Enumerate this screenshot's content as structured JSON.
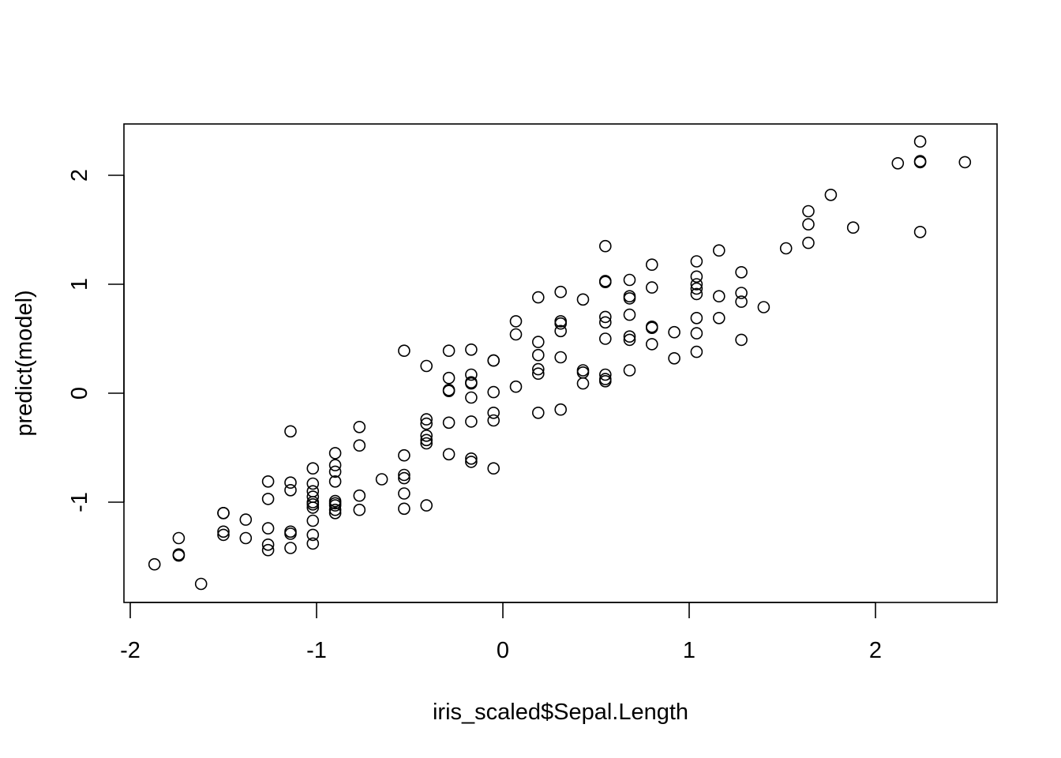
{
  "chart_data": {
    "type": "scatter",
    "title": "",
    "xlabel": "iris_scaled$Sepal.Length",
    "ylabel": "predict(model)",
    "xlim": [
      -2.0,
      2.65
    ],
    "ylim": [
      -1.92,
      2.46
    ],
    "xticks": [
      -2,
      -1,
      0,
      1,
      2
    ],
    "yticks": [
      -1,
      0,
      1,
      2
    ],
    "xtick_labels": [
      "-2",
      "-1",
      "0",
      "1",
      "2"
    ],
    "ytick_labels": [
      "-1",
      "0",
      "1",
      "2"
    ],
    "grid": false,
    "marker": "open-circle",
    "colors": {
      "points": "#000000",
      "axes": "#000000",
      "background": "#ffffff"
    },
    "points": [
      [
        2.24,
        2.31
      ],
      [
        2.24,
        2.13
      ],
      [
        2.24,
        2.12
      ],
      [
        2.12,
        2.11
      ],
      [
        2.48,
        2.12
      ],
      [
        2.24,
        1.48
      ],
      [
        1.76,
        1.82
      ],
      [
        1.64,
        1.67
      ],
      [
        1.64,
        1.55
      ],
      [
        1.64,
        1.38
      ],
      [
        1.88,
        1.52
      ],
      [
        1.52,
        1.33
      ],
      [
        1.4,
        0.79
      ],
      [
        1.28,
        1.11
      ],
      [
        1.28,
        0.92
      ],
      [
        1.28,
        0.84
      ],
      [
        1.28,
        0.49
      ],
      [
        1.16,
        1.31
      ],
      [
        1.16,
        0.89
      ],
      [
        1.16,
        0.69
      ],
      [
        1.04,
        1.21
      ],
      [
        1.04,
        1.07
      ],
      [
        1.04,
        1.0
      ],
      [
        1.04,
        0.96
      ],
      [
        1.04,
        0.91
      ],
      [
        1.04,
        0.69
      ],
      [
        1.04,
        0.55
      ],
      [
        1.04,
        0.38
      ],
      [
        0.92,
        0.56
      ],
      [
        0.92,
        0.32
      ],
      [
        0.8,
        1.18
      ],
      [
        0.8,
        0.97
      ],
      [
        0.8,
        0.61
      ],
      [
        0.8,
        0.6
      ],
      [
        0.8,
        0.45
      ],
      [
        0.68,
        1.04
      ],
      [
        0.68,
        0.89
      ],
      [
        0.68,
        0.87
      ],
      [
        0.68,
        0.72
      ],
      [
        0.68,
        0.52
      ],
      [
        0.68,
        0.49
      ],
      [
        0.68,
        0.21
      ],
      [
        0.55,
        1.35
      ],
      [
        0.55,
        1.02
      ],
      [
        0.55,
        1.03
      ],
      [
        0.55,
        0.7
      ],
      [
        0.55,
        0.65
      ],
      [
        0.55,
        0.5
      ],
      [
        0.55,
        0.17
      ],
      [
        0.55,
        0.13
      ],
      [
        0.55,
        0.11
      ],
      [
        0.43,
        0.86
      ],
      [
        0.43,
        0.21
      ],
      [
        0.43,
        0.19
      ],
      [
        0.43,
        0.09
      ],
      [
        0.31,
        0.93
      ],
      [
        0.31,
        0.66
      ],
      [
        0.31,
        0.64
      ],
      [
        0.31,
        0.57
      ],
      [
        0.31,
        0.33
      ],
      [
        0.31,
        -0.15
      ],
      [
        0.19,
        0.88
      ],
      [
        0.19,
        0.47
      ],
      [
        0.19,
        0.35
      ],
      [
        0.19,
        0.22
      ],
      [
        0.19,
        0.18
      ],
      [
        0.19,
        -0.18
      ],
      [
        0.07,
        0.66
      ],
      [
        0.07,
        0.54
      ],
      [
        0.07,
        0.06
      ],
      [
        -0.05,
        0.3
      ],
      [
        -0.05,
        0.3
      ],
      [
        -0.05,
        0.01
      ],
      [
        -0.05,
        -0.18
      ],
      [
        -0.05,
        -0.25
      ],
      [
        -0.05,
        -0.69
      ],
      [
        -0.17,
        0.4
      ],
      [
        -0.17,
        0.17
      ],
      [
        -0.17,
        0.1
      ],
      [
        -0.17,
        0.09
      ],
      [
        -0.17,
        -0.04
      ],
      [
        -0.17,
        -0.26
      ],
      [
        -0.17,
        -0.6
      ],
      [
        -0.17,
        -0.63
      ],
      [
        -0.29,
        0.39
      ],
      [
        -0.29,
        0.14
      ],
      [
        -0.29,
        0.03
      ],
      [
        -0.29,
        0.02
      ],
      [
        -0.29,
        -0.27
      ],
      [
        -0.29,
        -0.56
      ],
      [
        -0.41,
        0.25
      ],
      [
        -0.41,
        -0.24
      ],
      [
        -0.41,
        -0.28
      ],
      [
        -0.41,
        -0.39
      ],
      [
        -0.41,
        -0.43
      ],
      [
        -0.41,
        -0.46
      ],
      [
        -0.41,
        -1.03
      ],
      [
        -0.53,
        0.39
      ],
      [
        -0.53,
        -0.57
      ],
      [
        -0.53,
        -0.75
      ],
      [
        -0.53,
        -0.78
      ],
      [
        -0.53,
        -0.92
      ],
      [
        -0.53,
        -1.06
      ],
      [
        -0.65,
        -0.79
      ],
      [
        -0.77,
        -0.31
      ],
      [
        -0.77,
        -0.48
      ],
      [
        -0.77,
        -0.94
      ],
      [
        -0.77,
        -1.07
      ],
      [
        -0.9,
        -0.55
      ],
      [
        -0.9,
        -0.66
      ],
      [
        -0.9,
        -0.72
      ],
      [
        -0.9,
        -0.81
      ],
      [
        -0.9,
        -0.99
      ],
      [
        -0.9,
        -1.01
      ],
      [
        -0.9,
        -1.03
      ],
      [
        -0.9,
        -1.07
      ],
      [
        -0.9,
        -1.1
      ],
      [
        -1.02,
        -0.69
      ],
      [
        -1.02,
        -0.83
      ],
      [
        -1.02,
        -0.9
      ],
      [
        -1.02,
        -0.95
      ],
      [
        -1.02,
        -1.0
      ],
      [
        -1.02,
        -1.02
      ],
      [
        -1.02,
        -1.05
      ],
      [
        -1.02,
        -1.17
      ],
      [
        -1.02,
        -1.3
      ],
      [
        -1.02,
        -1.38
      ],
      [
        -1.14,
        -0.35
      ],
      [
        -1.14,
        -0.82
      ],
      [
        -1.14,
        -0.89
      ],
      [
        -1.14,
        -1.27
      ],
      [
        -1.14,
        -1.29
      ],
      [
        -1.14,
        -1.42
      ],
      [
        -1.26,
        -0.81
      ],
      [
        -1.26,
        -0.97
      ],
      [
        -1.26,
        -1.24
      ],
      [
        -1.26,
        -1.39
      ],
      [
        -1.26,
        -1.44
      ],
      [
        -1.38,
        -1.16
      ],
      [
        -1.38,
        -1.33
      ],
      [
        -1.5,
        -1.1
      ],
      [
        -1.5,
        -1.1
      ],
      [
        -1.5,
        -1.27
      ],
      [
        -1.5,
        -1.3
      ],
      [
        -1.74,
        -1.33
      ],
      [
        -1.74,
        -1.48
      ],
      [
        -1.74,
        -1.49
      ],
      [
        -1.62,
        -1.75
      ],
      [
        -1.87,
        -1.57
      ]
    ]
  }
}
